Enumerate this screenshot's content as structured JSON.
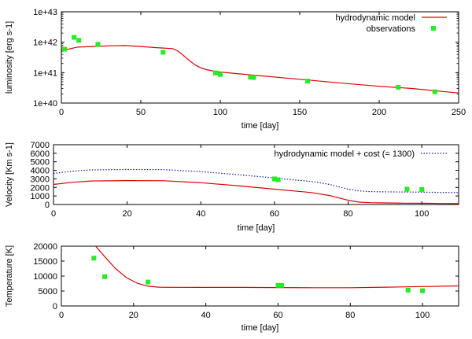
{
  "colors": {
    "model": "#e00000",
    "obs": "#22ee22",
    "cost": "#1a1aa0",
    "axis": "#000000"
  },
  "chart_data": [
    {
      "type": "line",
      "id": "luminosity",
      "title": "",
      "xlabel": "time [day]",
      "ylabel": "luminosity [erg s-1]",
      "xlim": [
        0,
        250
      ],
      "ylim_log10": [
        40,
        43
      ],
      "yscale": "log",
      "xticks": [
        0,
        50,
        100,
        150,
        200,
        250
      ],
      "yticks": [
        {
          "exp": 40,
          "label": "1e+40"
        },
        {
          "exp": 41,
          "label": "1e+41"
        },
        {
          "exp": 42,
          "label": "1e+42"
        },
        {
          "exp": 43,
          "label": "1e+43"
        }
      ],
      "legend_position": "top-right",
      "series": [
        {
          "name": "hydrodynamic model",
          "style": "line",
          "x": [
            0,
            10,
            20,
            30,
            40,
            50,
            60,
            70,
            73,
            76,
            80,
            84,
            88,
            92,
            96,
            100,
            120,
            150,
            180,
            200,
            220,
            240,
            250
          ],
          "log10y": [
            41.72,
            41.84,
            41.86,
            41.88,
            41.89,
            41.86,
            41.82,
            41.79,
            41.72,
            41.6,
            41.42,
            41.26,
            41.15,
            41.09,
            41.05,
            41.02,
            40.92,
            40.78,
            40.64,
            40.55,
            40.48,
            40.38,
            40.33
          ]
        },
        {
          "name": "observations",
          "style": "points",
          "x": [
            2,
            8,
            11,
            23,
            64,
            97,
            100,
            119,
            121,
            155,
            212,
            235
          ],
          "log10y": [
            41.77,
            42.16,
            42.06,
            41.93,
            41.67,
            40.99,
            40.94,
            40.85,
            40.84,
            40.72,
            40.52,
            40.37
          ]
        }
      ]
    },
    {
      "type": "line",
      "id": "velocity",
      "title": "",
      "xlabel": "time [day]",
      "ylabel": "Velocity [Km s-1]",
      "xlim": [
        0,
        110
      ],
      "ylim": [
        0,
        7000
      ],
      "xticks": [
        0,
        20,
        40,
        60,
        80,
        100
      ],
      "yticks": [
        0,
        1000,
        2000,
        3000,
        4000,
        5000,
        6000,
        7000
      ],
      "legend_position": "top-right",
      "series": [
        {
          "name": "hydrodynamic model",
          "style": "line",
          "legend": false,
          "x": [
            0,
            5,
            10,
            20,
            30,
            40,
            50,
            60,
            70,
            75,
            80,
            83,
            86,
            90,
            95,
            100,
            105,
            110
          ],
          "y": [
            2350,
            2600,
            2750,
            2800,
            2780,
            2550,
            2200,
            1800,
            1400,
            1050,
            500,
            280,
            210,
            180,
            160,
            150,
            120,
            100
          ]
        },
        {
          "name": "hydrodynamic model + cost (= 1300)",
          "style": "dotted",
          "x": [
            0,
            5,
            10,
            20,
            30,
            40,
            50,
            60,
            70,
            75,
            80,
            83,
            86,
            90,
            95,
            100,
            105,
            110
          ],
          "y": [
            3650,
            3900,
            4050,
            4100,
            4080,
            3850,
            3500,
            3100,
            2700,
            2350,
            1800,
            1580,
            1510,
            1480,
            1460,
            1450,
            1420,
            1400
          ]
        },
        {
          "name": "observations",
          "style": "points",
          "legend": false,
          "x": [
            60,
            61,
            96,
            100
          ],
          "y": [
            3000,
            2900,
            1800,
            1750
          ]
        }
      ]
    },
    {
      "type": "line",
      "id": "temperature",
      "title": "",
      "xlabel": "time [day]",
      "ylabel": "Temperature [K]",
      "xlim": [
        0,
        110
      ],
      "ylim": [
        0,
        20000
      ],
      "xticks": [
        0,
        20,
        40,
        60,
        80,
        100
      ],
      "yticks": [
        0,
        5000,
        10000,
        15000,
        20000
      ],
      "series": [
        {
          "name": "hydrodynamic model",
          "style": "line",
          "x": [
            9.5,
            12,
            15,
            18,
            21,
            24,
            27,
            30,
            40,
            50,
            60,
            70,
            80,
            90,
            100,
            110
          ],
          "y": [
            20000,
            16500,
            12500,
            9500,
            7600,
            6600,
            6300,
            6250,
            6200,
            6200,
            6150,
            6100,
            6100,
            6300,
            6500,
            6700
          ]
        },
        {
          "name": "observations",
          "style": "points",
          "x": [
            9,
            12,
            24,
            60,
            61,
            96,
            100
          ],
          "y": [
            16000,
            9800,
            8000,
            6900,
            6900,
            5300,
            5100
          ]
        }
      ]
    }
  ]
}
